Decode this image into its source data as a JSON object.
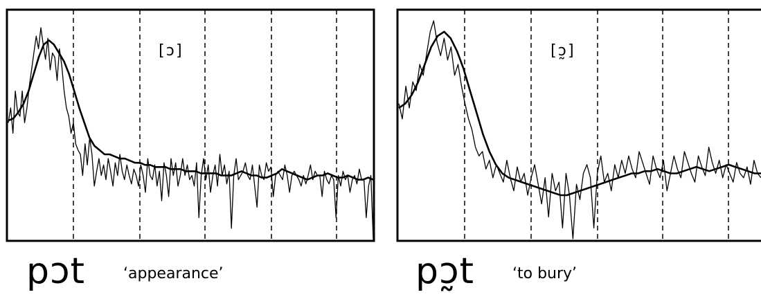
{
  "chart_data": [
    {
      "type": "line",
      "vowel_label": "[ɔ]",
      "word": "pɔt",
      "gloss": "‘appearance’",
      "grid": "dashed vertical lines",
      "series": [
        {
          "style": "jagged",
          "values": [
            0.55,
            0.62,
            0.5,
            0.7,
            0.6,
            0.58,
            0.7,
            0.55,
            0.62,
            0.72,
            0.8,
            0.88,
            0.96,
            0.9,
            1.0,
            0.92,
            0.85,
            0.95,
            0.8,
            0.88,
            0.86,
            0.75,
            0.9,
            0.82,
            0.7,
            0.62,
            0.58,
            0.5,
            0.55,
            0.45,
            0.42,
            0.4,
            0.3,
            0.45,
            0.35,
            0.48,
            0.4,
            0.25,
            0.32,
            0.38,
            0.3,
            0.35,
            0.28,
            0.38,
            0.32,
            0.25,
            0.36,
            0.3,
            0.4,
            0.32,
            0.28,
            0.35,
            0.3,
            0.26,
            0.33,
            0.3,
            0.25,
            0.35,
            0.3,
            0.22,
            0.38,
            0.3,
            0.28,
            0.35,
            0.25,
            0.32,
            0.18,
            0.36,
            0.3,
            0.2,
            0.38,
            0.3,
            0.36,
            0.25,
            0.3,
            0.38,
            0.3,
            0.35,
            0.28,
            0.3,
            0.25,
            0.36,
            0.1,
            0.3,
            0.38,
            0.28,
            0.35,
            0.22,
            0.3,
            0.35,
            0.25,
            0.4,
            0.3,
            0.35,
            0.26,
            0.32,
            0.05,
            0.3,
            0.38,
            0.28,
            0.3,
            0.32,
            0.36,
            0.3,
            0.28,
            0.35,
            0.25,
            0.15,
            0.35,
            0.3,
            0.28,
            0.36,
            0.32,
            0.34,
            0.2,
            0.3,
            0.32,
            0.3,
            0.28,
            0.35,
            0.3,
            0.22,
            0.3,
            0.32,
            0.3,
            0.28,
            0.25,
            0.3,
            0.26,
            0.3,
            0.35,
            0.28,
            0.32,
            0.3,
            0.3,
            0.2,
            0.32,
            0.28,
            0.26,
            0.3,
            0.28,
            0.1,
            0.3,
            0.25,
            0.32,
            0.28,
            0.3,
            0.22,
            0.28,
            0.3,
            0.26,
            0.33,
            0.28,
            0.28,
            0.1,
            0.25,
            0.3,
            0.0
          ]
        },
        {
          "style": "smooth",
          "values": [
            0.56,
            0.57,
            0.6,
            0.64,
            0.7,
            0.78,
            0.86,
            0.92,
            0.94,
            0.92,
            0.88,
            0.84,
            0.78,
            0.7,
            0.62,
            0.55,
            0.48,
            0.44,
            0.42,
            0.4,
            0.4,
            0.39,
            0.38,
            0.38,
            0.37,
            0.36,
            0.36,
            0.35,
            0.35,
            0.34,
            0.34,
            0.34,
            0.33,
            0.33,
            0.33,
            0.32,
            0.32,
            0.32,
            0.31,
            0.31,
            0.31,
            0.31,
            0.3,
            0.3,
            0.3,
            0.31,
            0.32,
            0.31,
            0.3,
            0.3,
            0.29,
            0.29,
            0.3,
            0.31,
            0.33,
            0.32,
            0.31,
            0.3,
            0.29,
            0.28,
            0.29,
            0.3,
            0.3,
            0.31,
            0.3,
            0.29,
            0.29,
            0.3,
            0.29,
            0.28,
            0.28,
            0.29,
            0.28
          ]
        }
      ]
    },
    {
      "type": "line",
      "vowel_label": "[ɔ̰]",
      "word": "pɔ̰t",
      "gloss": "‘to bury’",
      "grid": "dashed vertical lines",
      "series": [
        {
          "style": "jagged",
          "values": [
            0.62,
            0.55,
            0.7,
            0.6,
            0.72,
            0.68,
            0.8,
            0.75,
            0.85,
            0.95,
            1.0,
            0.9,
            0.84,
            0.92,
            0.82,
            0.88,
            0.75,
            0.8,
            0.7,
            0.62,
            0.55,
            0.5,
            0.42,
            0.38,
            0.4,
            0.32,
            0.36,
            0.28,
            0.34,
            0.3,
            0.26,
            0.36,
            0.28,
            0.22,
            0.33,
            0.26,
            0.3,
            0.2,
            0.28,
            0.34,
            0.25,
            0.16,
            0.28,
            0.1,
            0.3,
            0.22,
            0.26,
            0.05,
            0.3,
            0.2,
            0.0,
            0.25,
            0.18,
            0.3,
            0.34,
            0.28,
            0.05,
            0.3,
            0.38,
            0.26,
            0.3,
            0.22,
            0.34,
            0.28,
            0.36,
            0.3,
            0.38,
            0.32,
            0.28,
            0.4,
            0.35,
            0.3,
            0.25,
            0.38,
            0.32,
            0.28,
            0.36,
            0.22,
            0.3,
            0.38,
            0.32,
            0.28,
            0.4,
            0.35,
            0.3,
            0.26,
            0.38,
            0.33,
            0.29,
            0.42,
            0.35,
            0.3,
            0.36,
            0.28,
            0.34,
            0.3,
            0.26,
            0.35,
            0.3,
            0.28,
            0.33,
            0.25,
            0.36,
            0.3,
            0.28
          ]
        },
        {
          "style": "smooth",
          "values": [
            0.6,
            0.62,
            0.66,
            0.72,
            0.8,
            0.88,
            0.93,
            0.95,
            0.92,
            0.86,
            0.78,
            0.68,
            0.58,
            0.48,
            0.4,
            0.34,
            0.3,
            0.28,
            0.27,
            0.26,
            0.25,
            0.24,
            0.23,
            0.22,
            0.21,
            0.2,
            0.2,
            0.21,
            0.22,
            0.23,
            0.24,
            0.25,
            0.26,
            0.27,
            0.28,
            0.29,
            0.3,
            0.3,
            0.31,
            0.31,
            0.32,
            0.31,
            0.3,
            0.3,
            0.31,
            0.32,
            0.33,
            0.32,
            0.31,
            0.32,
            0.33,
            0.34,
            0.33,
            0.32,
            0.31,
            0.3,
            0.3
          ]
        }
      ]
    }
  ]
}
